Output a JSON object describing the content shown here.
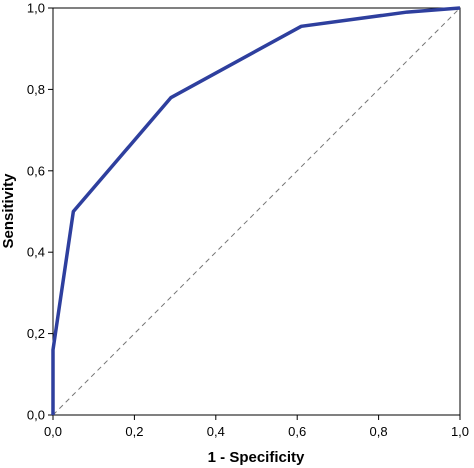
{
  "chart_data": {
    "type": "line",
    "title": "",
    "xlabel": "1 - Specificity",
    "ylabel": "Sensitivity",
    "xlim": [
      0,
      1
    ],
    "ylim": [
      0,
      1
    ],
    "x_ticks": [
      "0,0",
      "0,2",
      "0,4",
      "0,6",
      "0,8",
      "1,0"
    ],
    "y_ticks": [
      "0,0",
      "0,2",
      "0,4",
      "0,6",
      "0,8",
      "1,0"
    ],
    "grid": false,
    "series": [
      {
        "color": "#2E3F9E",
        "x": [
          0.0,
          0.0,
          0.05,
          0.29,
          0.61,
          0.87,
          1.0
        ],
        "y": [
          0.0,
          0.16,
          0.5,
          0.78,
          0.955,
          0.99,
          1.0
        ]
      }
    ],
    "reference_line": {
      "x": [
        0,
        1
      ],
      "y": [
        0,
        1
      ],
      "style": "dashed",
      "color": "#777777"
    }
  }
}
